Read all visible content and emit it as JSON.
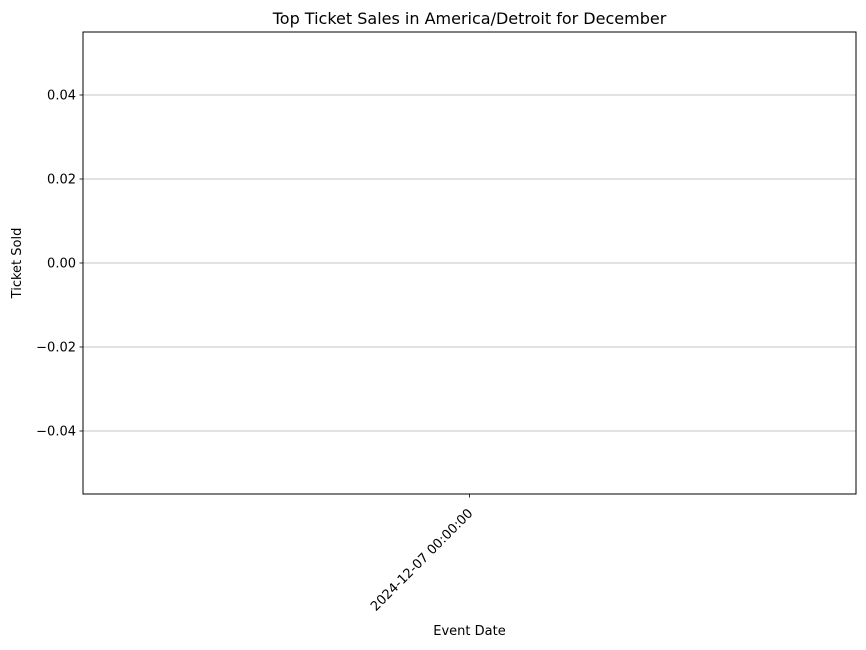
{
  "chart_data": {
    "type": "bar",
    "title": "Top Ticket Sales in America/Detroit for December",
    "xlabel": "Event Date",
    "ylabel": "Ticket Sold",
    "categories": [
      "2024-12-07 00:00:00"
    ],
    "values": [
      0
    ],
    "ylim": [
      -0.055,
      0.055
    ],
    "yticks": [
      -0.04,
      -0.02,
      0.0,
      0.02,
      0.04
    ],
    "ytick_labels": [
      "−0.04",
      "−0.02",
      "0.00",
      "0.02",
      "0.04"
    ],
    "grid": "y",
    "xtick_rotation_deg": 45,
    "legend": "none"
  }
}
